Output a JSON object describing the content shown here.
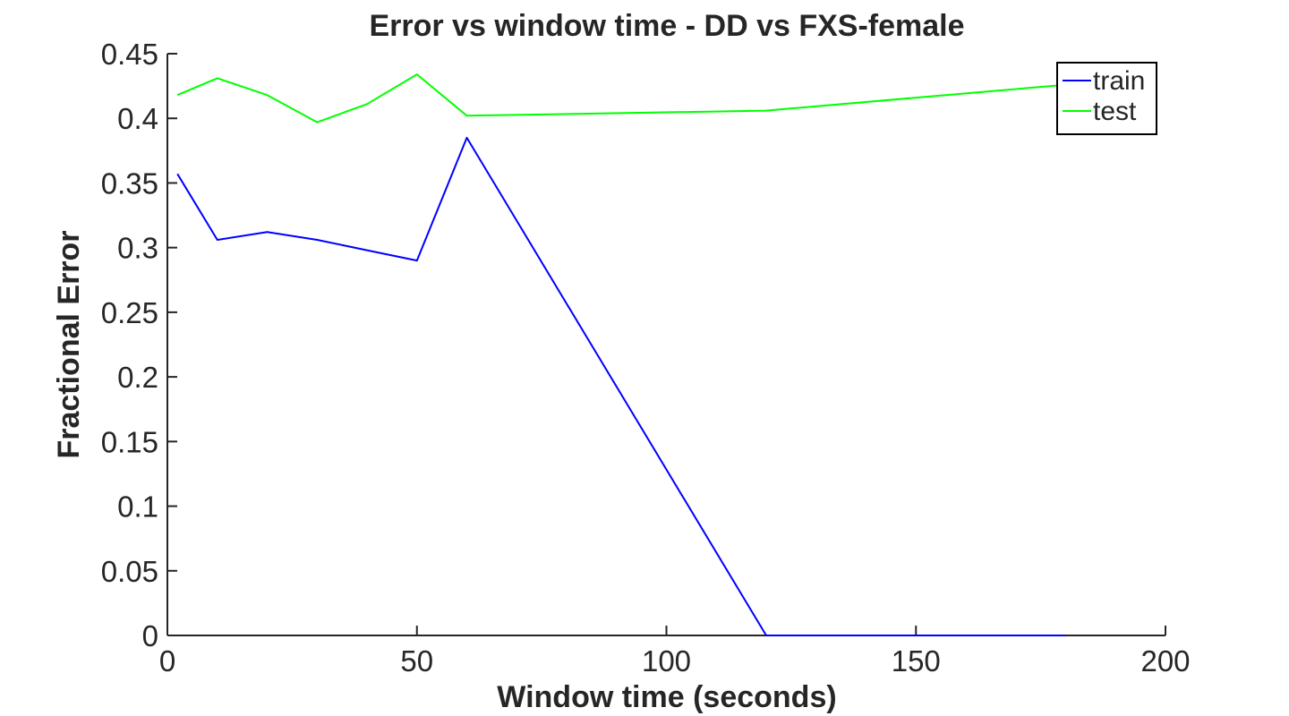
{
  "chart_data": {
    "type": "line",
    "title": "Error vs window time - DD vs FXS-female",
    "xlabel": "Window time (seconds)",
    "ylabel": "Fractional Error",
    "xlim": [
      0,
      200
    ],
    "ylim": [
      0,
      0.45
    ],
    "xticks": [
      0,
      50,
      100,
      150,
      200
    ],
    "xtick_labels": [
      "0",
      "50",
      "100",
      "150",
      "200"
    ],
    "yticks": [
      0,
      0.05,
      0.1,
      0.15,
      0.2,
      0.25,
      0.3,
      0.35,
      0.4,
      0.45
    ],
    "ytick_labels": [
      "0",
      "0.05",
      "0.1",
      "0.15",
      "0.2",
      "0.25",
      "0.3",
      "0.35",
      "0.4",
      "0.45"
    ],
    "grid": false,
    "legend_position": "top-right",
    "series": [
      {
        "name": "train",
        "color": "#0000ff",
        "x": [
          2,
          10,
          20,
          30,
          40,
          50,
          60,
          120,
          180
        ],
        "y": [
          0.357,
          0.306,
          0.312,
          0.306,
          0.298,
          0.29,
          0.385,
          0.0,
          0.0
        ]
      },
      {
        "name": "test",
        "color": "#00ff00",
        "x": [
          2,
          10,
          20,
          30,
          40,
          50,
          60,
          120,
          180
        ],
        "y": [
          0.418,
          0.431,
          0.418,
          0.397,
          0.411,
          0.434,
          0.402,
          0.406,
          0.426
        ]
      }
    ]
  }
}
